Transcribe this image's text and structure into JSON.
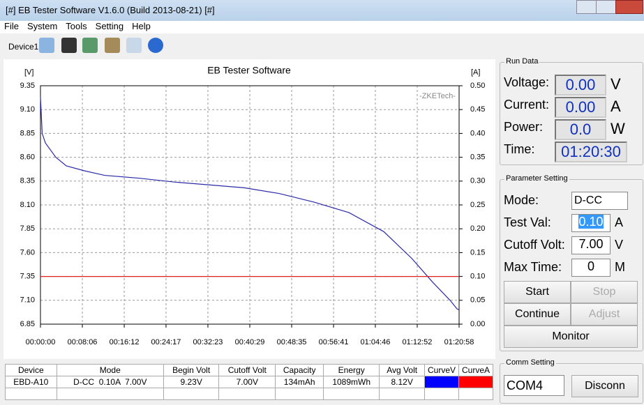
{
  "window": {
    "title": "[#] EB Tester Software V1.6.0 (Build 2013-08-21) [#]"
  },
  "menu": [
    "File",
    "System",
    "Tools",
    "Setting",
    "Help"
  ],
  "toolbar": {
    "device": "Device1"
  },
  "chart_data": {
    "type": "line",
    "title": "EB Tester Software",
    "watermark": "-ZKETech-",
    "y_label": "[V]",
    "y2_label": "[A]",
    "x": [
      0,
      20,
      57,
      178,
      300,
      502,
      745,
      1150,
      1555,
      1960,
      2364,
      2769,
      3174,
      3579,
      3984,
      4308,
      4551,
      4753,
      4834,
      4858
    ],
    "series": [
      {
        "name": "CurveV",
        "color": "#2a2aa8",
        "values": [
          9.23,
          8.85,
          8.75,
          8.6,
          8.51,
          8.46,
          8.41,
          8.38,
          8.34,
          8.31,
          8.28,
          8.22,
          8.13,
          8.02,
          7.82,
          7.54,
          7.29,
          7.1,
          7.01,
          7.0
        ]
      },
      {
        "name": "CurveA",
        "color": "#e02020",
        "axis": "y2",
        "values": [
          0.1,
          0.1,
          0.1,
          0.1,
          0.1,
          0.1,
          0.1,
          0.1,
          0.1,
          0.1,
          0.1,
          0.1,
          0.1,
          0.1,
          0.1,
          0.1,
          0.1,
          0.1,
          0.1,
          0.1
        ]
      }
    ],
    "xlim": [
      0,
      4858
    ],
    "xticks": [
      {
        "value": 0,
        "label": "00:00:00"
      },
      {
        "value": 486,
        "label": "00:08:06"
      },
      {
        "value": 972,
        "label": "00:16:12"
      },
      {
        "value": 1457,
        "label": "00:24:17"
      },
      {
        "value": 1943,
        "label": "00:32:23"
      },
      {
        "value": 2429,
        "label": "00:40:29"
      },
      {
        "value": 2915,
        "label": "00:48:35"
      },
      {
        "value": 3401,
        "label": "00:56:41"
      },
      {
        "value": 3886,
        "label": "01:04:46"
      },
      {
        "value": 4372,
        "label": "01:12:52"
      },
      {
        "value": 4858,
        "label": "01:20:58"
      }
    ],
    "ylim": [
      6.85,
      9.35
    ],
    "yticks": [
      {
        "value": 6.85,
        "label": "6.85"
      },
      {
        "value": 7.1,
        "label": "7.10"
      },
      {
        "value": 7.35,
        "label": "7.35"
      },
      {
        "value": 7.6,
        "label": "7.60"
      },
      {
        "value": 7.85,
        "label": "7.85"
      },
      {
        "value": 8.1,
        "label": "8.10"
      },
      {
        "value": 8.35,
        "label": "8.35"
      },
      {
        "value": 8.6,
        "label": "8.60"
      },
      {
        "value": 8.85,
        "label": "8.85"
      },
      {
        "value": 9.1,
        "label": "9.10"
      },
      {
        "value": 9.35,
        "label": "9.35"
      }
    ],
    "y2lim": [
      0,
      0.5
    ],
    "y2ticks": [
      {
        "value": 0,
        "label": "0.00"
      },
      {
        "value": 0.05,
        "label": "0.05"
      },
      {
        "value": 0.1,
        "label": "0.10"
      },
      {
        "value": 0.15,
        "label": "0.15"
      },
      {
        "value": 0.2,
        "label": "0.20"
      },
      {
        "value": 0.25,
        "label": "0.25"
      },
      {
        "value": 0.3,
        "label": "0.30"
      },
      {
        "value": 0.35,
        "label": "0.35"
      },
      {
        "value": 0.4,
        "label": "0.40"
      },
      {
        "value": 0.45,
        "label": "0.45"
      },
      {
        "value": 0.5,
        "label": "0.50"
      }
    ],
    "grid": true
  },
  "run_data": {
    "title": "Run Data",
    "rows": [
      {
        "label": "Voltage:",
        "value": "0.00",
        "unit": "V"
      },
      {
        "label": "Current:",
        "value": "0.00",
        "unit": "A"
      },
      {
        "label": "Power:",
        "value": "0.0",
        "unit": "W"
      },
      {
        "label": "Time:",
        "value": "01:20:30"
      }
    ]
  },
  "parameter_setting": {
    "title": "Parameter Setting",
    "mode": {
      "label": "Mode:",
      "value": "D-CC"
    },
    "fields": [
      {
        "label": "Test Val:",
        "value": "0.10",
        "unit": "A"
      },
      {
        "label": "Cutoff Volt:",
        "value": "7.00",
        "unit": "V"
      },
      {
        "label": "Max Time:",
        "value": "0",
        "unit": "M"
      }
    ],
    "buttons": [
      "Start",
      "Stop",
      "Continue",
      "Adjust",
      "Monitor"
    ]
  },
  "comm_setting": {
    "title": "Comm Setting",
    "port": "COM4",
    "button": "Disconn"
  },
  "table": {
    "header": [
      "Device",
      "Mode",
      "Begin Volt",
      "Cutoff Volt",
      "Capacity",
      "Energy",
      "Avg Volt"
    ],
    "rows": [
      [
        "EBD-A10",
        "D-CC  0.10A  7.00V",
        "9.23V",
        "7.00V",
        "134mAh",
        "1089mWh",
        "8.12V"
      ]
    ]
  }
}
